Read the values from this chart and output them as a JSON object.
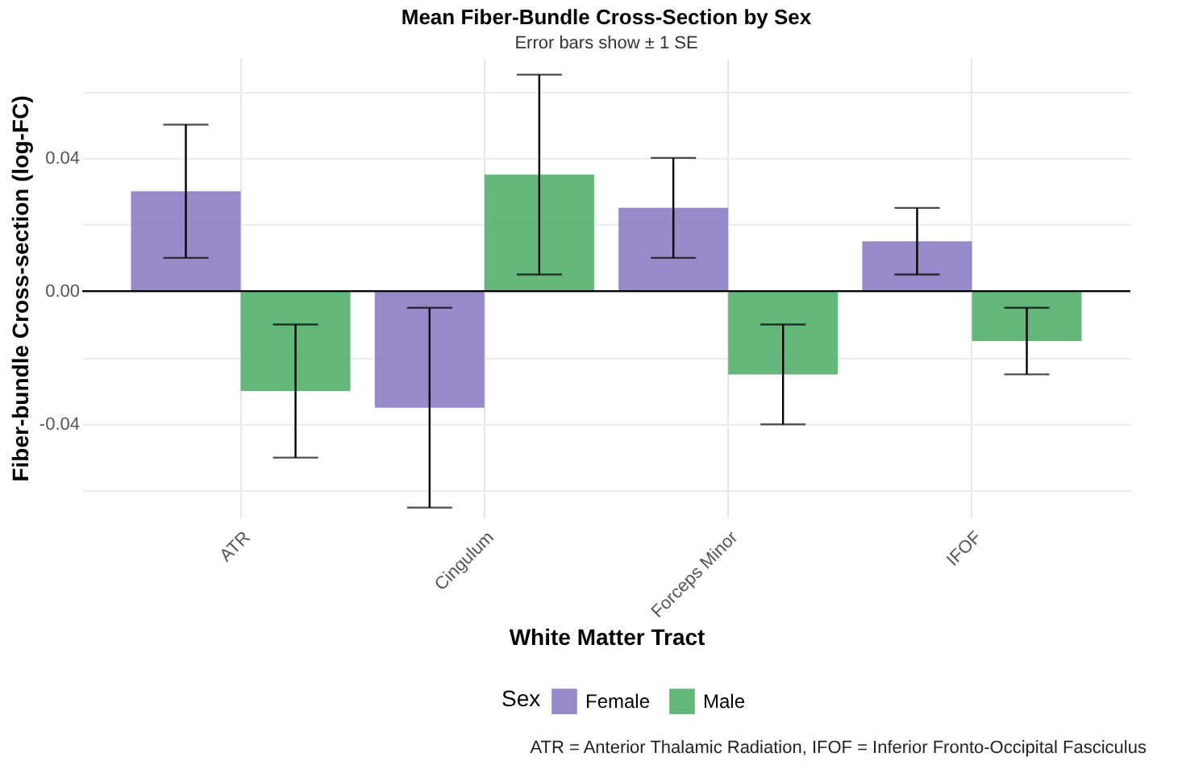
{
  "chart_data": {
    "type": "bar",
    "title": "Mean Fiber-Bundle Cross-Section by Sex",
    "subtitle": "Error bars show ± 1 SE",
    "xlabel": "White Matter Tract",
    "ylabel": "Fiber-bundle Cross-section (log-FC)",
    "legend_title": "Sex",
    "categories": [
      "ATR",
      "Cingulum",
      "Forceps Minor",
      "IFOF"
    ],
    "series": [
      {
        "name": "Female",
        "color": "#9284c6",
        "values": [
          0.03,
          -0.035,
          0.025,
          0.015
        ],
        "errors": [
          0.02,
          0.03,
          0.015,
          0.01
        ]
      },
      {
        "name": "Male",
        "color": "#5bb373",
        "values": [
          -0.03,
          0.035,
          -0.025,
          -0.015
        ],
        "errors": [
          0.02,
          0.03,
          0.015,
          0.01
        ]
      }
    ],
    "ylim": [
      -0.068,
      0.07
    ],
    "yticks": [
      {
        "value": -0.06,
        "label": null
      },
      -0.04,
      {
        "value": -0.02,
        "label": null
      },
      {
        "value": 0,
        "label": "0.00"
      },
      {
        "value": 0.02,
        "label": null
      },
      0.04,
      {
        "value": 0.06,
        "label": null
      }
    ],
    "grid": true,
    "legend": "bottom",
    "ref_lines": [
      {
        "axis": "y",
        "value": 0,
        "color": "#000000"
      }
    ],
    "annotations": [
      "ATR = Anterior Thalamic Radiation, IFOF = Inferior Fronto-Occipital Fasciculus"
    ]
  }
}
